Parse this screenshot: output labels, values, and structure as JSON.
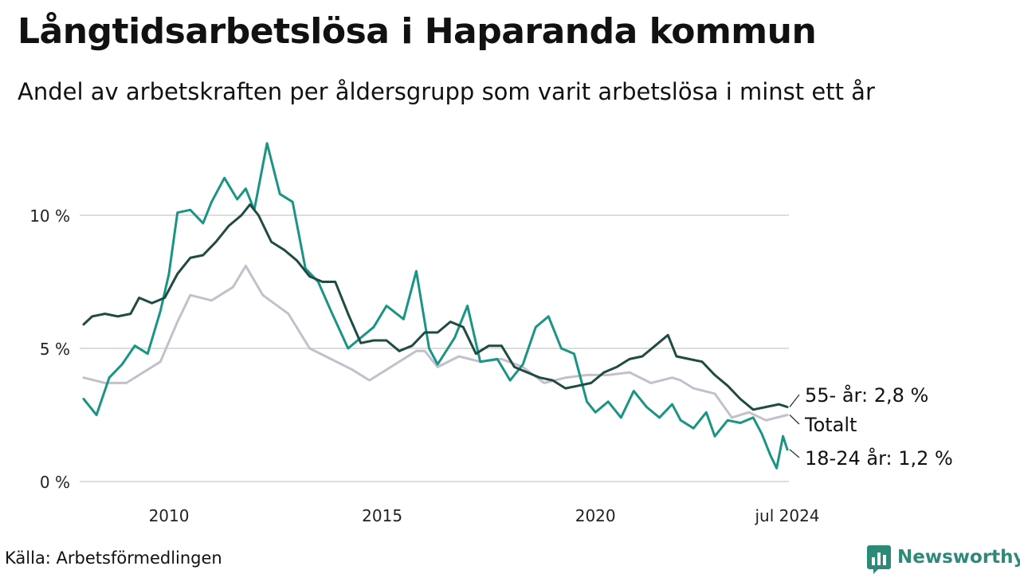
{
  "title": "Långtidsarbetslösa i Haparanda kommun",
  "subtitle": "Andel av arbetskraften per åldersgrupp som varit arbetslösa i minst ett år",
  "source": "Källa: Arbetsförmedlingen",
  "brand": "Newsworthy",
  "colors": {
    "series_55": "#1f4b43",
    "series_total": "#c3c0cc",
    "series_18_24": "#1a9484",
    "grid": "#dddddd",
    "brand": "#2e8a78"
  },
  "chart_data": {
    "type": "line",
    "title": "Långtidsarbetslösa i Haparanda kommun",
    "ylabel": "",
    "xlabel": "",
    "ylim": [
      0,
      12.5
    ],
    "xlim": [
      2008.0,
      2024.5
    ],
    "yticks": [
      {
        "value": 0,
        "label": "0 %"
      },
      {
        "value": 5,
        "label": "5 %"
      },
      {
        "value": 10,
        "label": "10 %"
      }
    ],
    "xticks": [
      {
        "value": 2010,
        "label": "2010"
      },
      {
        "value": 2015,
        "label": "2015"
      },
      {
        "value": 2020,
        "label": "2020"
      },
      {
        "value": 2024.5,
        "label": "jul 2024"
      }
    ],
    "series": [
      {
        "name": "Totalt",
        "label": "Totalt",
        "color": "#c3c0cc",
        "points": [
          [
            2008.0,
            3.9
          ],
          [
            2008.5,
            3.7
          ],
          [
            2009.0,
            3.7
          ],
          [
            2009.5,
            4.2
          ],
          [
            2009.8,
            4.5
          ],
          [
            2010.2,
            6.0
          ],
          [
            2010.5,
            7.0
          ],
          [
            2011.0,
            6.8
          ],
          [
            2011.5,
            7.3
          ],
          [
            2011.8,
            8.1
          ],
          [
            2012.2,
            7.0
          ],
          [
            2012.8,
            6.3
          ],
          [
            2013.3,
            5.0
          ],
          [
            2013.8,
            4.6
          ],
          [
            2014.3,
            4.2
          ],
          [
            2014.7,
            3.8
          ],
          [
            2015.3,
            4.4
          ],
          [
            2015.8,
            4.9
          ],
          [
            2016.0,
            4.9
          ],
          [
            2016.3,
            4.3
          ],
          [
            2016.8,
            4.7
          ],
          [
            2017.3,
            4.5
          ],
          [
            2017.8,
            4.6
          ],
          [
            2018.3,
            4.3
          ],
          [
            2018.8,
            3.7
          ],
          [
            2019.3,
            3.9
          ],
          [
            2019.8,
            4.0
          ],
          [
            2020.3,
            4.0
          ],
          [
            2020.8,
            4.1
          ],
          [
            2021.3,
            3.7
          ],
          [
            2021.8,
            3.9
          ],
          [
            2022.0,
            3.8
          ],
          [
            2022.3,
            3.5
          ],
          [
            2022.8,
            3.3
          ],
          [
            2023.2,
            2.4
          ],
          [
            2023.6,
            2.6
          ],
          [
            2024.0,
            2.3
          ],
          [
            2024.5,
            2.5
          ]
        ]
      },
      {
        "name": "18-24 år",
        "label": "18-24 år: 1,2 %",
        "color": "#1a9484",
        "points": [
          [
            2008.0,
            3.1
          ],
          [
            2008.3,
            2.5
          ],
          [
            2008.6,
            3.9
          ],
          [
            2008.9,
            4.4
          ],
          [
            2009.2,
            5.1
          ],
          [
            2009.5,
            4.8
          ],
          [
            2009.8,
            6.4
          ],
          [
            2010.0,
            7.8
          ],
          [
            2010.2,
            10.1
          ],
          [
            2010.5,
            10.2
          ],
          [
            2010.8,
            9.7
          ],
          [
            2011.0,
            10.5
          ],
          [
            2011.3,
            11.4
          ],
          [
            2011.6,
            10.6
          ],
          [
            2011.8,
            11.0
          ],
          [
            2012.0,
            10.2
          ],
          [
            2012.3,
            12.7
          ],
          [
            2012.6,
            10.8
          ],
          [
            2012.9,
            10.5
          ],
          [
            2013.2,
            8.0
          ],
          [
            2013.5,
            7.5
          ],
          [
            2013.8,
            6.4
          ],
          [
            2014.2,
            5.0
          ],
          [
            2014.5,
            5.4
          ],
          [
            2014.8,
            5.8
          ],
          [
            2015.1,
            6.6
          ],
          [
            2015.5,
            6.1
          ],
          [
            2015.8,
            7.9
          ],
          [
            2016.1,
            5.0
          ],
          [
            2016.3,
            4.4
          ],
          [
            2016.7,
            5.4
          ],
          [
            2017.0,
            6.6
          ],
          [
            2017.3,
            4.5
          ],
          [
            2017.7,
            4.6
          ],
          [
            2018.0,
            3.8
          ],
          [
            2018.3,
            4.4
          ],
          [
            2018.6,
            5.8
          ],
          [
            2018.9,
            6.2
          ],
          [
            2019.2,
            5.0
          ],
          [
            2019.5,
            4.8
          ],
          [
            2019.8,
            3.0
          ],
          [
            2020.0,
            2.6
          ],
          [
            2020.3,
            3.0
          ],
          [
            2020.6,
            2.4
          ],
          [
            2020.9,
            3.4
          ],
          [
            2021.2,
            2.8
          ],
          [
            2021.5,
            2.4
          ],
          [
            2021.8,
            2.9
          ],
          [
            2022.0,
            2.3
          ],
          [
            2022.3,
            2.0
          ],
          [
            2022.6,
            2.6
          ],
          [
            2022.8,
            1.7
          ],
          [
            2023.1,
            2.3
          ],
          [
            2023.4,
            2.2
          ],
          [
            2023.7,
            2.4
          ],
          [
            2023.9,
            1.8
          ],
          [
            2024.1,
            1.0
          ],
          [
            2024.25,
            0.5
          ],
          [
            2024.4,
            1.7
          ],
          [
            2024.5,
            1.2
          ]
        ]
      },
      {
        "name": "55- år",
        "label": "55- år: 2,8 %",
        "color": "#1f4b43",
        "points": [
          [
            2008.0,
            5.9
          ],
          [
            2008.2,
            6.2
          ],
          [
            2008.5,
            6.3
          ],
          [
            2008.8,
            6.2
          ],
          [
            2009.1,
            6.3
          ],
          [
            2009.3,
            6.9
          ],
          [
            2009.6,
            6.7
          ],
          [
            2009.9,
            6.9
          ],
          [
            2010.2,
            7.8
          ],
          [
            2010.5,
            8.4
          ],
          [
            2010.8,
            8.5
          ],
          [
            2011.1,
            9.0
          ],
          [
            2011.4,
            9.6
          ],
          [
            2011.7,
            10.0
          ],
          [
            2011.9,
            10.4
          ],
          [
            2012.1,
            10.0
          ],
          [
            2012.4,
            9.0
          ],
          [
            2012.7,
            8.7
          ],
          [
            2013.0,
            8.3
          ],
          [
            2013.3,
            7.7
          ],
          [
            2013.6,
            7.5
          ],
          [
            2013.9,
            7.5
          ],
          [
            2014.2,
            6.3
          ],
          [
            2014.5,
            5.2
          ],
          [
            2014.8,
            5.3
          ],
          [
            2015.1,
            5.3
          ],
          [
            2015.4,
            4.9
          ],
          [
            2015.7,
            5.1
          ],
          [
            2016.0,
            5.6
          ],
          [
            2016.3,
            5.6
          ],
          [
            2016.6,
            6.0
          ],
          [
            2016.9,
            5.8
          ],
          [
            2017.2,
            4.8
          ],
          [
            2017.5,
            5.1
          ],
          [
            2017.8,
            5.1
          ],
          [
            2018.1,
            4.3
          ],
          [
            2018.4,
            4.1
          ],
          [
            2018.7,
            3.9
          ],
          [
            2019.0,
            3.8
          ],
          [
            2019.3,
            3.5
          ],
          [
            2019.6,
            3.6
          ],
          [
            2019.9,
            3.7
          ],
          [
            2020.2,
            4.1
          ],
          [
            2020.5,
            4.3
          ],
          [
            2020.8,
            4.6
          ],
          [
            2021.1,
            4.7
          ],
          [
            2021.4,
            5.1
          ],
          [
            2021.7,
            5.5
          ],
          [
            2021.9,
            4.7
          ],
          [
            2022.2,
            4.6
          ],
          [
            2022.5,
            4.5
          ],
          [
            2022.8,
            4.0
          ],
          [
            2023.1,
            3.6
          ],
          [
            2023.4,
            3.1
          ],
          [
            2023.7,
            2.7
          ],
          [
            2024.0,
            2.8
          ],
          [
            2024.3,
            2.9
          ],
          [
            2024.5,
            2.8
          ]
        ]
      }
    ],
    "legend_placement": "direct labels at right end of lines"
  }
}
